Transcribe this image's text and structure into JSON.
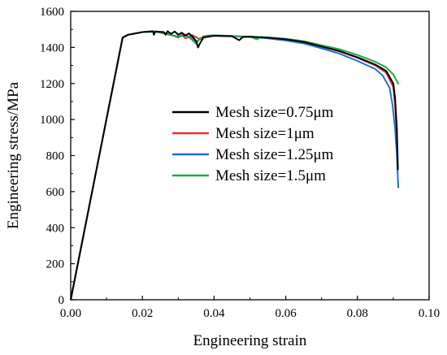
{
  "chart_data": {
    "type": "line",
    "title": "",
    "xlabel": "Engineering strain",
    "ylabel": "Engineering stress/MPa",
    "xlim": [
      0,
      0.1
    ],
    "ylim": [
      0,
      1600
    ],
    "xticks": [
      "0.00",
      "0.02",
      "0.04",
      "0.06",
      "0.08",
      "0.10"
    ],
    "yticks": [
      "0",
      "200",
      "400",
      "600",
      "800",
      "1000",
      "1200",
      "1400",
      "1600"
    ],
    "grid": false,
    "legend_position": "center-right",
    "series": [
      {
        "name": "Mesh size=0.75μm",
        "color": "#000000",
        "points": [
          [
            0,
            0
          ],
          [
            0.0145,
            1455
          ],
          [
            0.016,
            1470
          ],
          [
            0.02,
            1485
          ],
          [
            0.023,
            1490
          ],
          [
            0.0232,
            1470
          ],
          [
            0.0236,
            1488
          ],
          [
            0.026,
            1485
          ],
          [
            0.0265,
            1470
          ],
          [
            0.027,
            1490
          ],
          [
            0.028,
            1475
          ],
          [
            0.029,
            1488
          ],
          [
            0.03,
            1470
          ],
          [
            0.031,
            1482
          ],
          [
            0.032,
            1465
          ],
          [
            0.033,
            1478
          ],
          [
            0.034,
            1460
          ],
          [
            0.035,
            1435
          ],
          [
            0.0355,
            1400
          ],
          [
            0.036,
            1420
          ],
          [
            0.037,
            1455
          ],
          [
            0.04,
            1465
          ],
          [
            0.045,
            1462
          ],
          [
            0.047,
            1440
          ],
          [
            0.048,
            1458
          ],
          [
            0.05,
            1460
          ],
          [
            0.055,
            1455
          ],
          [
            0.06,
            1445
          ],
          [
            0.065,
            1430
          ],
          [
            0.07,
            1405
          ],
          [
            0.075,
            1380
          ],
          [
            0.08,
            1345
          ],
          [
            0.085,
            1305
          ],
          [
            0.088,
            1270
          ],
          [
            0.09,
            1200
          ],
          [
            0.0905,
            1120
          ],
          [
            0.091,
            950
          ],
          [
            0.0913,
            720
          ]
        ]
      },
      {
        "name": "Mesh size=1μm",
        "color": "#e8302a",
        "points": [
          [
            0,
            0
          ],
          [
            0.0145,
            1455
          ],
          [
            0.016,
            1470
          ],
          [
            0.02,
            1485
          ],
          [
            0.024,
            1488
          ],
          [
            0.026,
            1480
          ],
          [
            0.028,
            1470
          ],
          [
            0.03,
            1455
          ],
          [
            0.031,
            1470
          ],
          [
            0.032,
            1450
          ],
          [
            0.034,
            1468
          ],
          [
            0.036,
            1445
          ],
          [
            0.037,
            1462
          ],
          [
            0.04,
            1465
          ],
          [
            0.045,
            1462
          ],
          [
            0.05,
            1458
          ],
          [
            0.055,
            1452
          ],
          [
            0.06,
            1442
          ],
          [
            0.065,
            1430
          ],
          [
            0.07,
            1405
          ],
          [
            0.075,
            1378
          ],
          [
            0.08,
            1342
          ],
          [
            0.085,
            1300
          ],
          [
            0.088,
            1260
          ],
          [
            0.09,
            1180
          ],
          [
            0.0905,
            1080
          ],
          [
            0.091,
            920
          ],
          [
            0.0912,
            800
          ]
        ]
      },
      {
        "name": "Mesh size=1.25μm",
        "color": "#1f6fd6",
        "points": [
          [
            0,
            0
          ],
          [
            0.0145,
            1455
          ],
          [
            0.016,
            1470
          ],
          [
            0.02,
            1485
          ],
          [
            0.024,
            1487
          ],
          [
            0.026,
            1478
          ],
          [
            0.028,
            1468
          ],
          [
            0.03,
            1458
          ],
          [
            0.032,
            1468
          ],
          [
            0.034,
            1450
          ],
          [
            0.035,
            1430
          ],
          [
            0.036,
            1445
          ],
          [
            0.038,
            1465
          ],
          [
            0.04,
            1467
          ],
          [
            0.045,
            1463
          ],
          [
            0.05,
            1458
          ],
          [
            0.055,
            1450
          ],
          [
            0.06,
            1438
          ],
          [
            0.065,
            1422
          ],
          [
            0.07,
            1395
          ],
          [
            0.075,
            1365
          ],
          [
            0.08,
            1325
          ],
          [
            0.085,
            1280
          ],
          [
            0.087,
            1245
          ],
          [
            0.089,
            1175
          ],
          [
            0.0898,
            1080
          ],
          [
            0.0905,
            950
          ],
          [
            0.091,
            800
          ],
          [
            0.0914,
            620
          ]
        ]
      },
      {
        "name": "Mesh size=1.5μm",
        "color": "#22a84a",
        "points": [
          [
            0,
            0
          ],
          [
            0.0145,
            1455
          ],
          [
            0.016,
            1470
          ],
          [
            0.02,
            1485
          ],
          [
            0.024,
            1487
          ],
          [
            0.026,
            1478
          ],
          [
            0.028,
            1470
          ],
          [
            0.03,
            1460
          ],
          [
            0.032,
            1472
          ],
          [
            0.034,
            1440
          ],
          [
            0.035,
            1420
          ],
          [
            0.036,
            1450
          ],
          [
            0.038,
            1465
          ],
          [
            0.04,
            1467
          ],
          [
            0.045,
            1464
          ],
          [
            0.05,
            1460
          ],
          [
            0.052,
            1445
          ],
          [
            0.053,
            1458
          ],
          [
            0.055,
            1455
          ],
          [
            0.06,
            1448
          ],
          [
            0.065,
            1435
          ],
          [
            0.07,
            1412
          ],
          [
            0.075,
            1390
          ],
          [
            0.08,
            1358
          ],
          [
            0.085,
            1320
          ],
          [
            0.088,
            1290
          ],
          [
            0.09,
            1250
          ],
          [
            0.0915,
            1195
          ]
        ]
      }
    ]
  }
}
